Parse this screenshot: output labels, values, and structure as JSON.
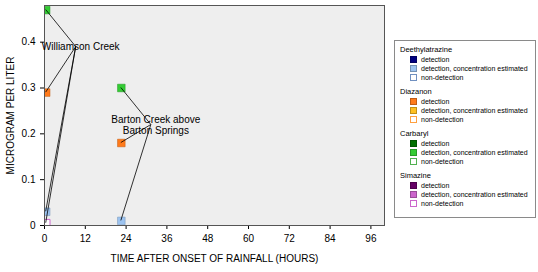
{
  "chart_data": {
    "type": "scatter",
    "xlabel": "TIME AFTER ONSET OF RAINFALL (HOURS)",
    "ylabel": "MICROGRAM PER LITER",
    "x": [
      0.5,
      22.6
    ],
    "site_labels": [
      "Williamson Creek",
      "Barton Creek above\nBarton Springs"
    ],
    "series": [
      {
        "name": "Carbaryl",
        "status": "detection, concentration estimated",
        "color": "#33cc33",
        "marker": "filled",
        "values": [
          0.47,
          0.3
        ]
      },
      {
        "name": "Diazanon",
        "status": "detection",
        "color": "#ff7a1a",
        "marker": "filled",
        "values": [
          0.29,
          0.18
        ]
      },
      {
        "name": "Deethylatrazine",
        "status": "detection, concentration estimated",
        "color": "#9cc3f0",
        "marker": "filled",
        "values": [
          0.03,
          0.01
        ]
      },
      {
        "name": "Simazine",
        "status": "non-detection",
        "color": "#cc66cc",
        "marker": "open",
        "values": [
          0.005,
          null
        ]
      }
    ],
    "xlim": [
      0,
      100
    ],
    "xticks": [
      0,
      12,
      24,
      36,
      48,
      60,
      72,
      84,
      96
    ],
    "ylim": [
      0,
      0.48
    ],
    "yticks": [
      0,
      0.1,
      0.2,
      0.3,
      0.4
    ],
    "legend": "right",
    "legend_groups": [
      {
        "name": "Deethylatrazine",
        "entries": [
          {
            "label": "detection",
            "color": "#000080",
            "marker": "filled"
          },
          {
            "label": "detection, concentration estimated",
            "color": "#9cc3f0",
            "marker": "filled"
          },
          {
            "label": "non-detection",
            "color": "#7090c0",
            "marker": "open"
          }
        ]
      },
      {
        "name": "Diazanon",
        "entries": [
          {
            "label": "detection",
            "color": "#ff7a1a",
            "marker": "filled"
          },
          {
            "label": "detection, concentration estimated",
            "color": "#ffc020",
            "marker": "filled"
          },
          {
            "label": "non-detection",
            "color": "#ffa040",
            "marker": "open"
          }
        ]
      },
      {
        "name": "Carbaryl",
        "entries": [
          {
            "label": "detection",
            "color": "#007000",
            "marker": "filled"
          },
          {
            "label": "detection, concentration estimated",
            "color": "#33cc33",
            "marker": "filled"
          },
          {
            "label": "non-detection",
            "color": "#50b050",
            "marker": "open"
          }
        ]
      },
      {
        "name": "Simazine",
        "entries": [
          {
            "label": "detection",
            "color": "#660066",
            "marker": "filled"
          },
          {
            "label": "detection, concentration estimated",
            "color": "#cc66cc",
            "marker": "filled"
          },
          {
            "label": "non-detection",
            "color": "#cc66cc",
            "marker": "open"
          }
        ]
      }
    ]
  }
}
